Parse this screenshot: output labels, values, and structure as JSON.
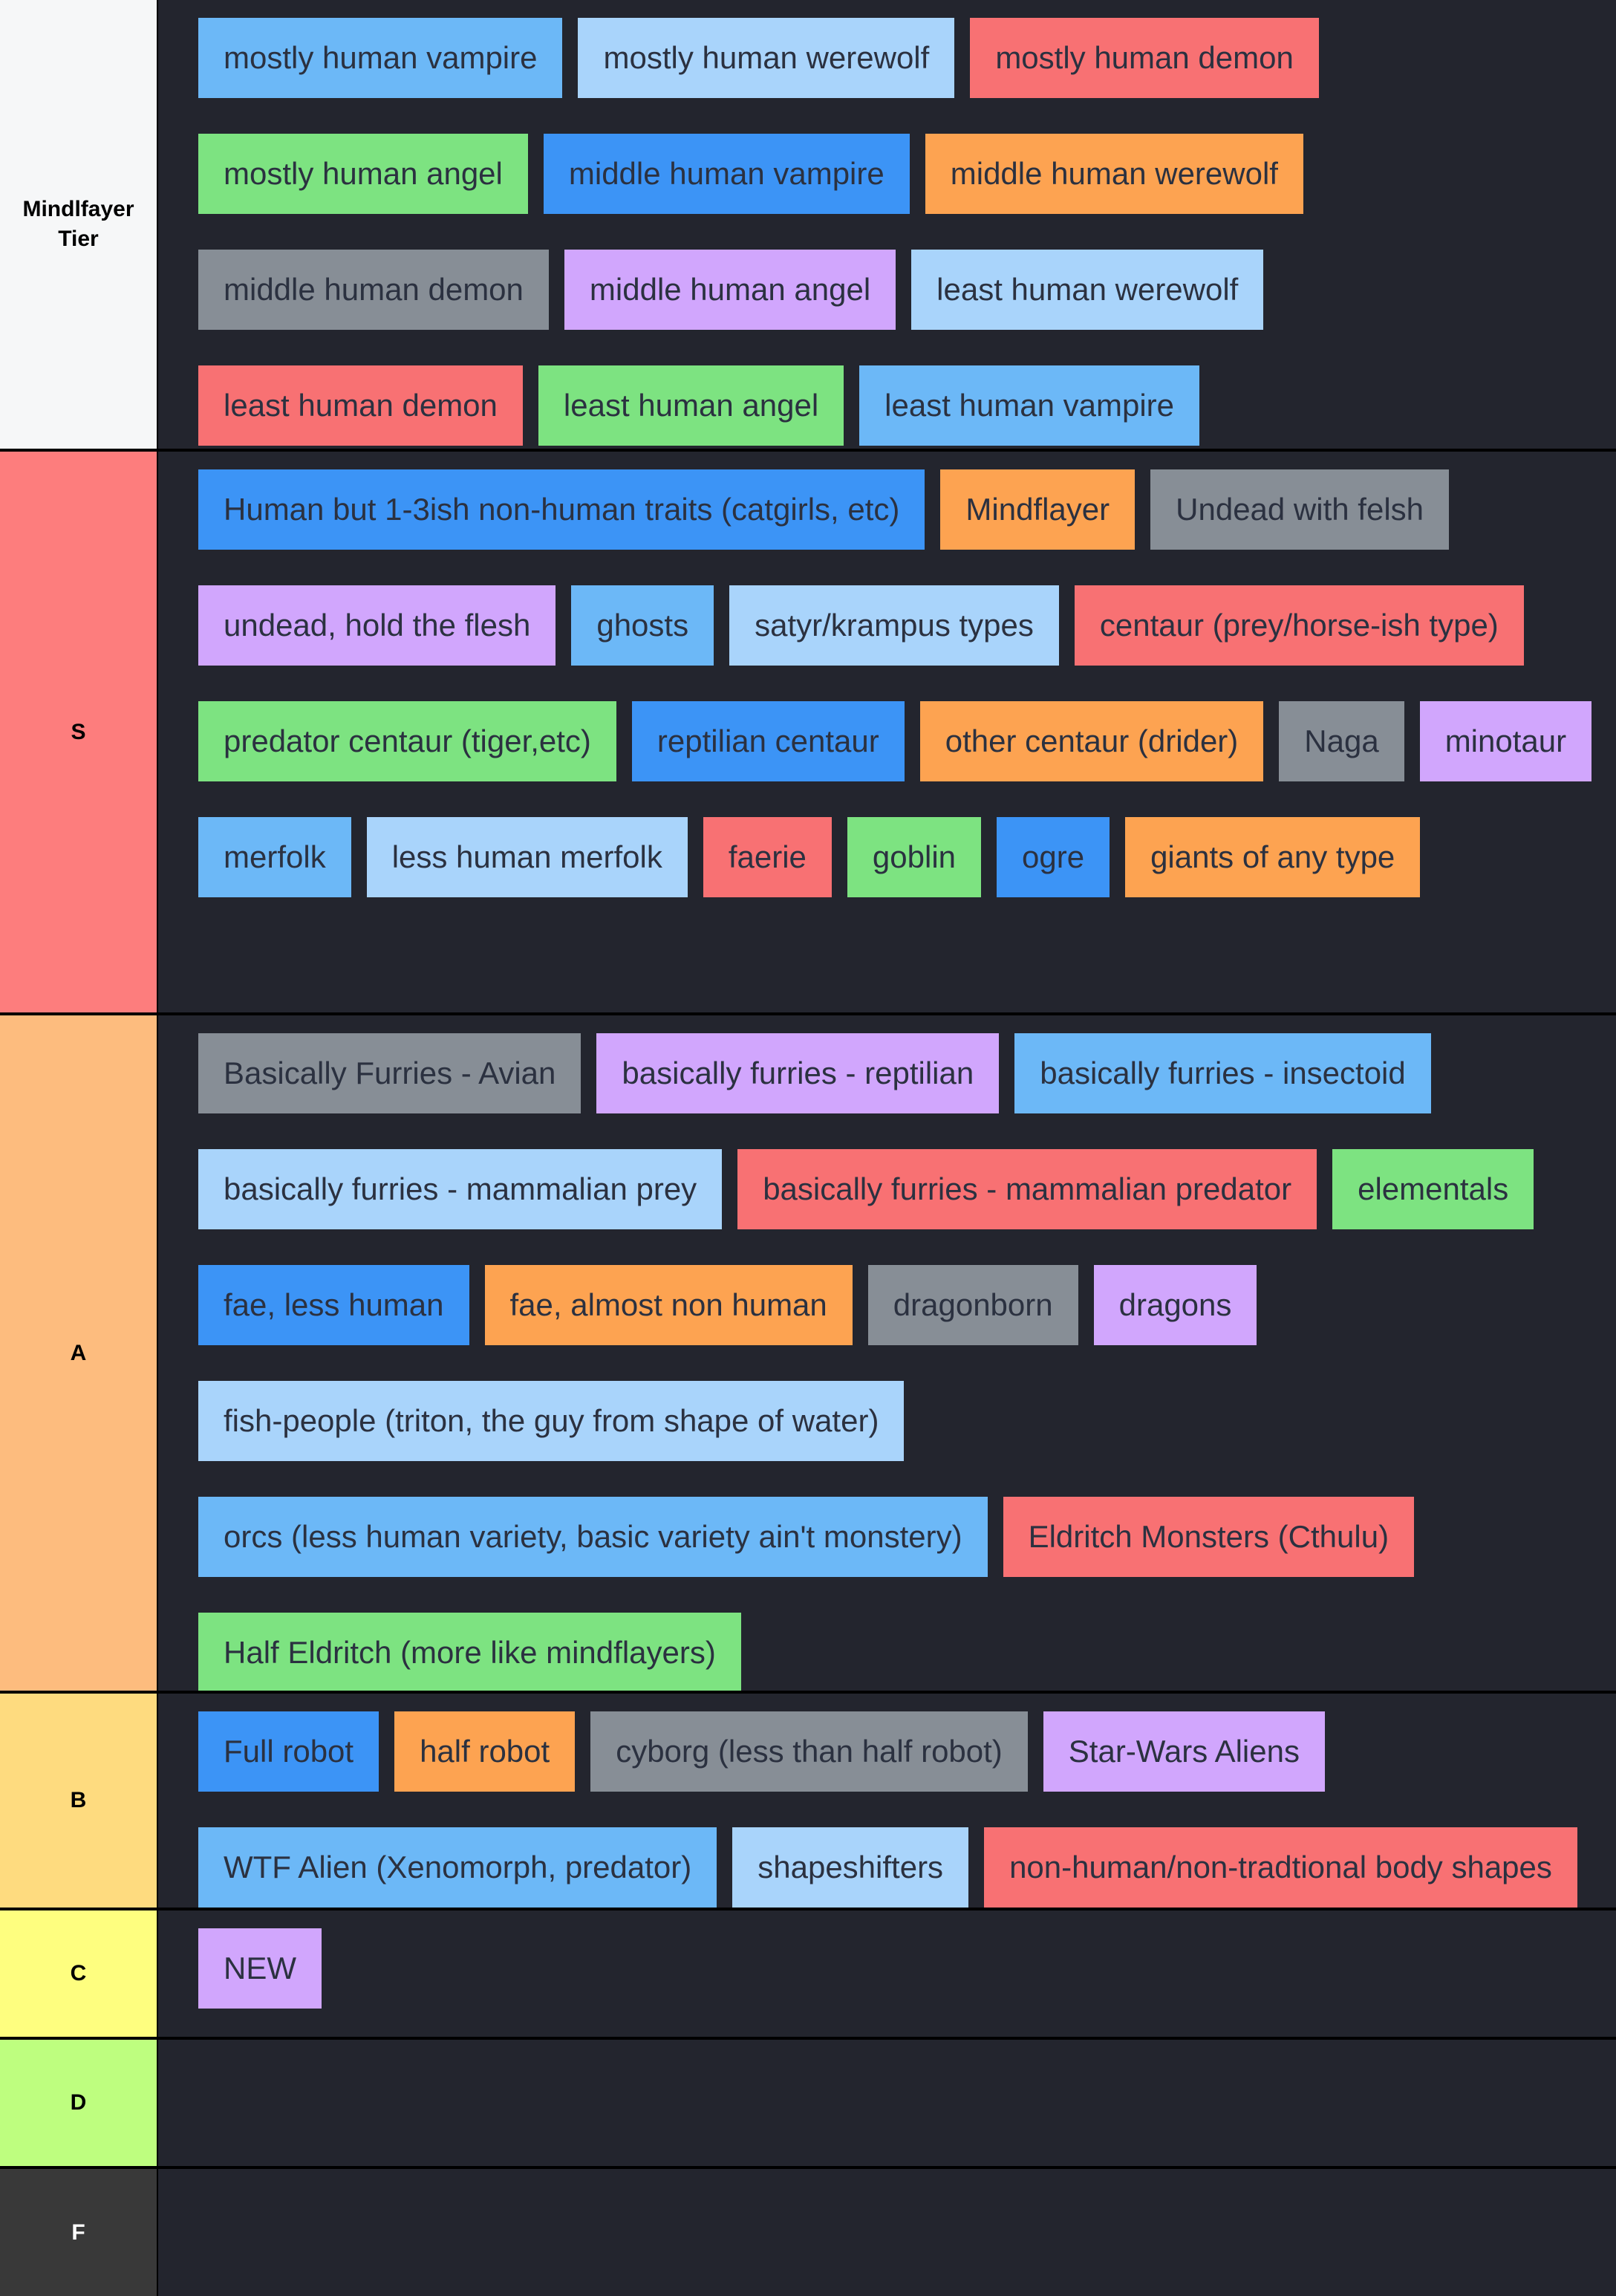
{
  "palette": {
    "blue_light": "#6cb8f7",
    "blue_pale": "#a9d4fb",
    "blue": "#3c94f6",
    "red": "#f87173",
    "green": "#7de381",
    "orange": "#fda351",
    "gray": "#878e96",
    "purple": "#d1a6fd"
  },
  "tiers": [
    {
      "label": "Mindlfayer Tier",
      "color": "#f6f7f8",
      "items": [
        {
          "text": "mostly human vampire",
          "color": "#6cb8f7"
        },
        {
          "text": "mostly human werewolf",
          "color": "#a9d4fb"
        },
        {
          "text": "mostly human demon",
          "color": "#f87173"
        },
        {
          "text": "mostly human angel",
          "color": "#7de381"
        },
        {
          "text": "middle human vampire",
          "color": "#3c94f6"
        },
        {
          "text": "middle human werewolf",
          "color": "#fda351"
        },
        {
          "text": "middle human demon",
          "color": "#878e96"
        },
        {
          "text": "middle human angel",
          "color": "#d1a6fd"
        },
        {
          "text": "least human werewolf",
          "color": "#a9d4fb"
        },
        {
          "text": "least human demon",
          "color": "#f87173"
        },
        {
          "text": "least human angel",
          "color": "#7de381"
        },
        {
          "text": "least human vampire",
          "color": "#6cb8f7"
        }
      ]
    },
    {
      "label": "S",
      "color": "#fd7d7d",
      "items": [
        {
          "text": "Human but 1-3ish non-human traits (catgirls, etc)",
          "color": "#3c94f6"
        },
        {
          "text": "Mindflayer",
          "color": "#fda351"
        },
        {
          "text": "Undead with felsh",
          "color": "#878e96"
        },
        {
          "text": "undead, hold the flesh",
          "color": "#d1a6fd"
        },
        {
          "text": "ghosts",
          "color": "#6cb8f7"
        },
        {
          "text": "satyr/krampus types",
          "color": "#a9d4fb"
        },
        {
          "text": "centaur (prey/horse-ish type)",
          "color": "#f87173"
        },
        {
          "text": "predator centaur (tiger,etc)",
          "color": "#7de381"
        },
        {
          "text": "reptilian centaur",
          "color": "#3c94f6"
        },
        {
          "text": "other centaur (drider)",
          "color": "#fda351"
        },
        {
          "text": "Naga",
          "color": "#878e96"
        },
        {
          "text": "minotaur",
          "color": "#d1a6fd"
        },
        {
          "text": "merfolk",
          "color": "#6cb8f7"
        },
        {
          "text": "less human merfolk",
          "color": "#a9d4fb"
        },
        {
          "text": "faerie",
          "color": "#f87173"
        },
        {
          "text": "goblin",
          "color": "#7de381"
        },
        {
          "text": "ogre",
          "color": "#3c94f6"
        },
        {
          "text": "giants of any type",
          "color": "#fda351"
        }
      ]
    },
    {
      "label": "A",
      "color": "#fdbc7e",
      "items": [
        {
          "text": "Basically Furries - Avian",
          "color": "#878e96"
        },
        {
          "text": "basically furries - reptilian",
          "color": "#d1a6fd"
        },
        {
          "text": "basically furries - insectoid",
          "color": "#6cb8f7"
        },
        {
          "text": "basically furries - mammalian prey",
          "color": "#a9d4fb"
        },
        {
          "text": "basically furries - mammalian predator",
          "color": "#f87173"
        },
        {
          "text": "elementals",
          "color": "#7de381"
        },
        {
          "text": "fae, less human",
          "color": "#3c94f6"
        },
        {
          "text": "fae, almost non human",
          "color": "#fda351"
        },
        {
          "text": "dragonborn",
          "color": "#878e96"
        },
        {
          "text": "dragons",
          "color": "#d1a6fd"
        },
        {
          "text": "fish-people (triton, the guy from shape of water)",
          "color": "#a9d4fb"
        },
        {
          "text": "orcs (less human variety, basic variety ain't monstery)",
          "color": "#6cb8f7"
        },
        {
          "text": "Eldritch Monsters (Cthulu)",
          "color": "#f87173"
        },
        {
          "text": "Half Eldritch (more like mindflayers)",
          "color": "#7de381"
        }
      ]
    },
    {
      "label": "B",
      "color": "#fedb7f",
      "items": [
        {
          "text": "Full robot",
          "color": "#3c94f6"
        },
        {
          "text": "half robot",
          "color": "#fda351"
        },
        {
          "text": "cyborg (less than half robot)",
          "color": "#878e96"
        },
        {
          "text": "Star-Wars Aliens",
          "color": "#d1a6fd"
        },
        {
          "text": "WTF Alien (Xenomorph, predator)",
          "color": "#6cb8f7"
        },
        {
          "text": "shapeshifters",
          "color": "#a9d4fb"
        },
        {
          "text": "non-human/non-tradtional body shapes",
          "color": "#f87173"
        }
      ]
    },
    {
      "label": "C",
      "color": "#fefe7f",
      "items": [
        {
          "text": "NEW",
          "color": "#d1a6fd"
        }
      ]
    },
    {
      "label": "D",
      "color": "#befe7f",
      "items": []
    },
    {
      "label": "F",
      "color": "#393939",
      "label_color": "#ffffff",
      "items": []
    }
  ]
}
